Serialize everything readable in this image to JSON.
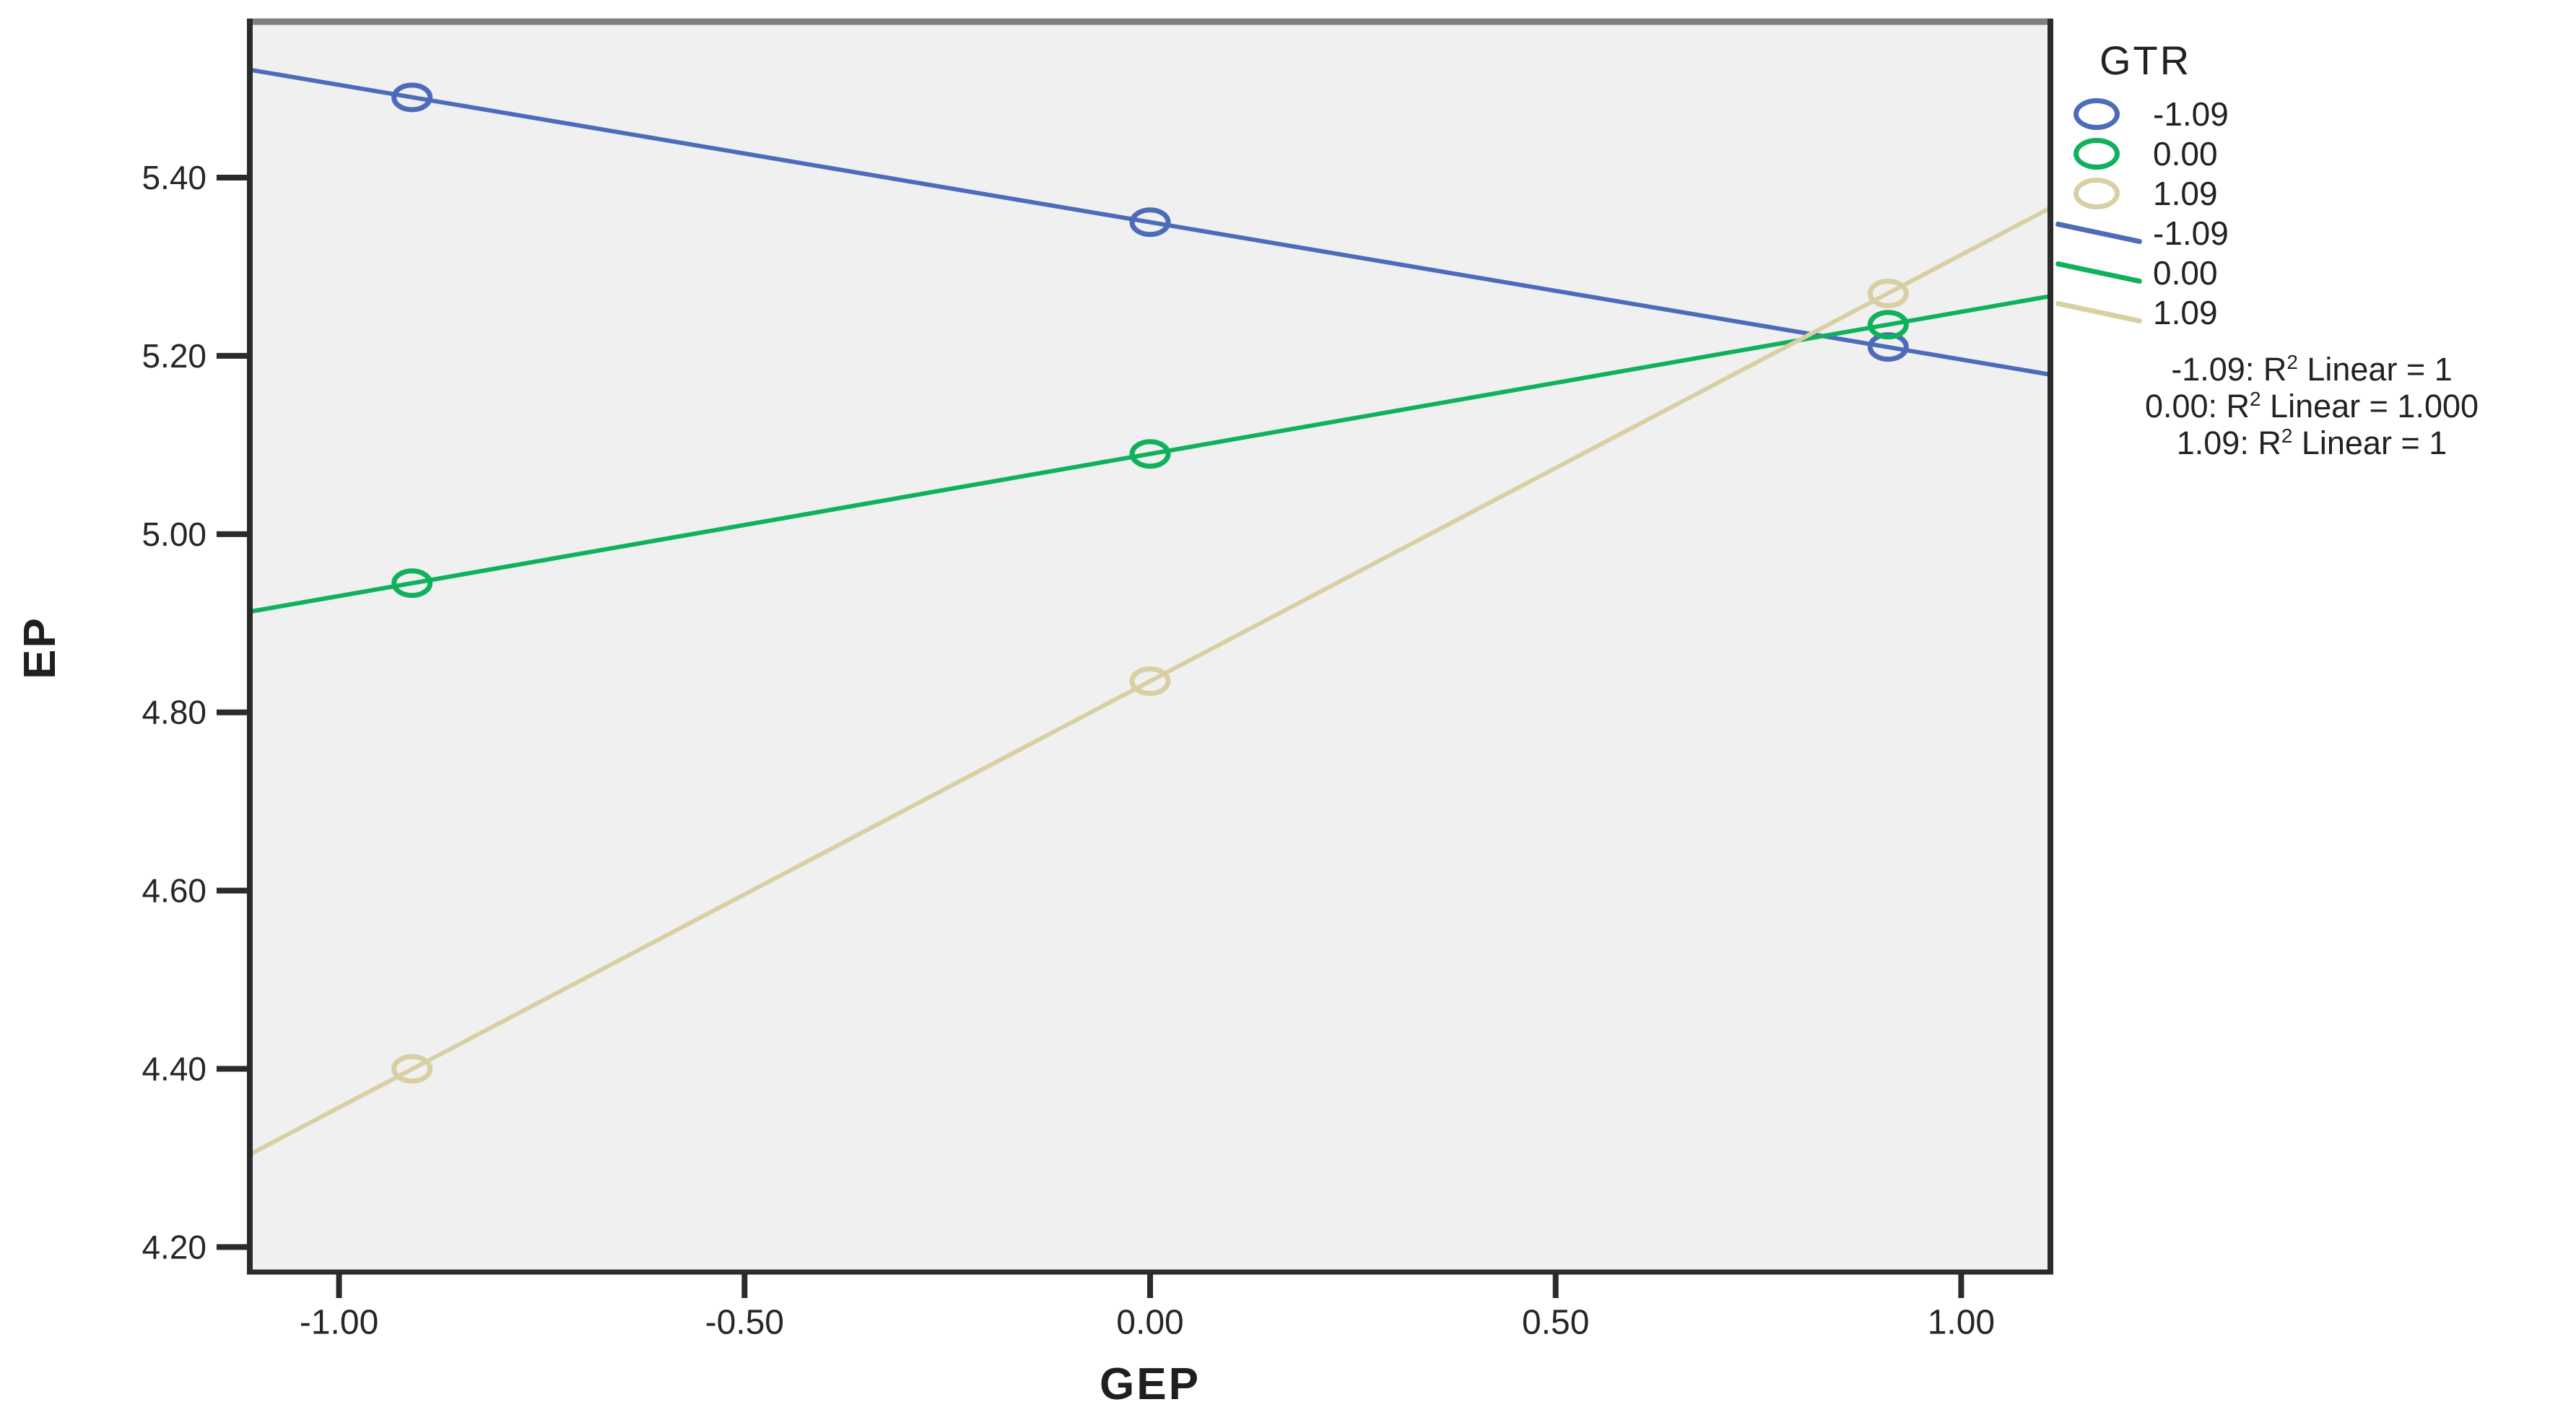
{
  "figure": {
    "plot_bg": "#f0f0f0",
    "frame_color": "#2b2b2b",
    "top_frame_color": "#7f7f7f",
    "text_color": "#262626"
  },
  "axes": {
    "y_title": "EP",
    "x_title": "GEP"
  },
  "legend": {
    "title": "GTR",
    "marker_items": [
      {
        "label": "-1.09"
      },
      {
        "label": "0.00"
      },
      {
        "label": "1.09"
      }
    ],
    "line_items": [
      {
        "label": "-1.09"
      },
      {
        "label": "0.00"
      },
      {
        "label": "1.09"
      }
    ]
  },
  "annotations": {
    "r2": [
      {
        "prefix": "-1.09: R",
        "sup": "2",
        "suffix": " Linear = 1"
      },
      {
        "prefix": "0.00: R",
        "sup": "2",
        "suffix": " Linear = 1.000"
      },
      {
        "prefix": "1.09: R",
        "sup": "2",
        "suffix": " Linear = 1"
      }
    ]
  },
  "chart_data": {
    "type": "line",
    "title": "",
    "xlabel": "GEP",
    "ylabel": "EP",
    "legend_title": "GTR",
    "legend_position": "right",
    "grid": false,
    "xlim": [
      -1.11,
      1.11
    ],
    "ylim": [
      4.172,
      5.575
    ],
    "x_ticks": [
      -1.0,
      -0.5,
      0.0,
      0.5,
      1.0
    ],
    "x_tick_labels": [
      "-1.00",
      "-0.50",
      "0.00",
      "0.50",
      "1.00"
    ],
    "y_ticks": [
      4.2,
      4.4,
      4.6,
      4.8,
      5.0,
      5.2,
      5.4
    ],
    "y_tick_labels": [
      "4.20",
      "4.40",
      "4.60",
      "4.80",
      "5.00",
      "5.20",
      "5.40"
    ],
    "series": [
      {
        "name": "-1.09",
        "color": "#4c6cba",
        "marker": "open-circle",
        "points": [
          [
            -0.91,
            5.49
          ],
          [
            0.0,
            5.35
          ],
          [
            0.91,
            5.21
          ]
        ],
        "line": [
          [
            -1.11,
            5.521
          ],
          [
            1.11,
            5.179
          ]
        ],
        "r2_linear": "1"
      },
      {
        "name": "0.00",
        "color": "#10b15c",
        "marker": "open-circle",
        "points": [
          [
            -0.91,
            4.945
          ],
          [
            0.0,
            5.09
          ],
          [
            0.91,
            5.235
          ]
        ],
        "line": [
          [
            -1.11,
            4.913
          ],
          [
            1.11,
            5.267
          ]
        ],
        "r2_linear": "1.000"
      },
      {
        "name": "1.09",
        "color": "#d8d0a2",
        "marker": "open-circle",
        "points": [
          [
            -0.91,
            4.4
          ],
          [
            0.0,
            4.835
          ],
          [
            0.91,
            5.27
          ]
        ],
        "line": [
          [
            -1.11,
            4.304
          ],
          [
            1.11,
            5.366
          ]
        ],
        "r2_linear": "1"
      }
    ]
  }
}
